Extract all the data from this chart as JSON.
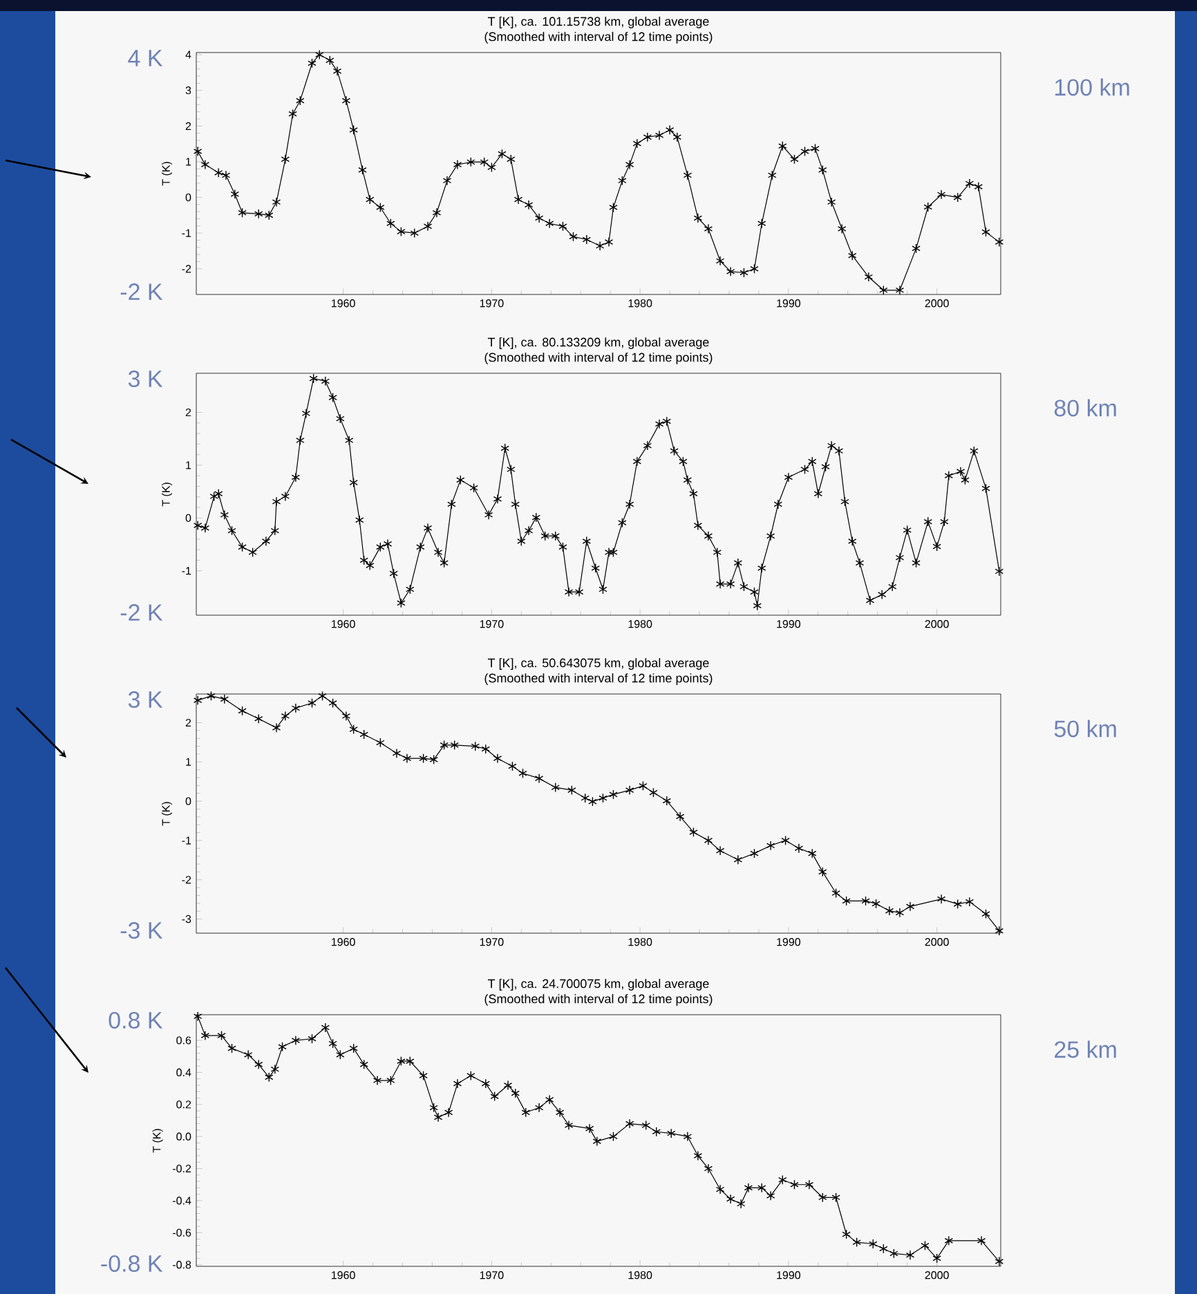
{
  "chart_data": [
    {
      "type": "line",
      "title": "T [K], ca. 101.15738 km, global average",
      "subtitle": "(Smoothed with interval of 12 time points)",
      "ylabel": "T (K)",
      "color": "#000000",
      "marker": "cross",
      "xlim": [
        1950.1,
        2004.3
      ],
      "xticks": [
        1960,
        1970,
        1980,
        1990,
        2000
      ],
      "ylim": [
        -2.72,
        4.06
      ],
      "yticks": [
        -2,
        -1,
        0,
        1,
        2,
        3,
        4
      ],
      "annotations": [
        "4 K",
        "-2 K",
        "100 km"
      ],
      "x": [
        1950.2,
        1950.7,
        1951.6,
        1952.1,
        1952.7,
        1953.2,
        1954.3,
        1955.0,
        1955.5,
        1956.1,
        1956.6,
        1957.1,
        1957.9,
        1958.4,
        1959.1,
        1959.6,
        1960.2,
        1960.7,
        1961.3,
        1961.8,
        1962.5,
        1963.2,
        1963.9,
        1964.8,
        1965.7,
        1966.3,
        1967.0,
        1967.7,
        1968.6,
        1969.5,
        1970.0,
        1970.7,
        1971.3,
        1971.8,
        1972.5,
        1973.2,
        1973.9,
        1974.8,
        1975.5,
        1976.4,
        1977.3,
        1977.9,
        1978.2,
        1978.8,
        1979.3,
        1979.8,
        1980.5,
        1981.3,
        1982.0,
        1982.5,
        1983.2,
        1983.9,
        1984.6,
        1985.4,
        1986.1,
        1987.0,
        1987.7,
        1988.2,
        1988.9,
        1989.6,
        1990.4,
        1991.1,
        1991.8,
        1992.3,
        1992.9,
        1993.6,
        1994.3,
        1995.4,
        1996.4,
        1997.5,
        1998.6,
        1999.4,
        2000.3,
        2001.4,
        2002.2,
        2002.8,
        2003.3,
        2004.2
      ],
      "values": [
        1.29,
        0.92,
        0.69,
        0.62,
        0.09,
        -0.43,
        -0.46,
        -0.5,
        -0.13,
        1.07,
        2.34,
        2.71,
        3.76,
        4.0,
        3.84,
        3.54,
        2.71,
        1.89,
        0.77,
        -0.06,
        -0.28,
        -0.73,
        -0.96,
        -1.0,
        -0.81,
        -0.43,
        0.47,
        0.92,
        0.99,
        0.99,
        0.84,
        1.22,
        1.07,
        -0.06,
        -0.21,
        -0.58,
        -0.73,
        -0.81,
        -1.1,
        -1.18,
        -1.36,
        -1.25,
        -0.28,
        0.47,
        0.92,
        1.51,
        1.69,
        1.74,
        1.89,
        1.69,
        0.62,
        -0.58,
        -0.88,
        -1.78,
        -2.08,
        -2.11,
        -2.0,
        -0.73,
        0.62,
        1.44,
        1.07,
        1.29,
        1.37,
        0.77,
        -0.13,
        -0.88,
        -1.63,
        -2.23,
        -2.6,
        -2.6,
        -1.43,
        -0.27,
        0.08,
        0.0,
        0.39,
        0.3,
        -0.97,
        -1.25
      ]
    },
    {
      "type": "line",
      "title": "T [K], ca. 80.133209 km, global average",
      "subtitle": "(Smoothed with interval of 12 time points)",
      "ylabel": "T (K)",
      "color": "#000000",
      "marker": "cross",
      "xlim": [
        1950.1,
        2004.3
      ],
      "xticks": [
        1960,
        1970,
        1980,
        1990,
        2000
      ],
      "ylim": [
        -1.84,
        2.74
      ],
      "yticks": [
        -1,
        0,
        1,
        2
      ],
      "annotations": [
        "3 K",
        "-2 K",
        "80 km"
      ],
      "x": [
        1950.2,
        1950.7,
        1951.3,
        1951.6,
        1952.0,
        1952.5,
        1953.2,
        1953.9,
        1954.8,
        1955.4,
        1955.5,
        1956.1,
        1956.8,
        1957.1,
        1957.5,
        1958.0,
        1958.8,
        1959.3,
        1959.8,
        1960.4,
        1960.7,
        1961.1,
        1961.4,
        1961.8,
        1962.5,
        1963.0,
        1963.4,
        1963.9,
        1964.5,
        1965.2,
        1965.7,
        1966.4,
        1966.8,
        1967.3,
        1967.9,
        1968.8,
        1969.8,
        1970.4,
        1970.9,
        1971.3,
        1971.6,
        1972.0,
        1972.5,
        1973.0,
        1973.6,
        1974.3,
        1974.8,
        1975.2,
        1975.9,
        1976.4,
        1977.0,
        1977.5,
        1977.9,
        1978.2,
        1978.8,
        1979.3,
        1979.8,
        1980.5,
        1981.3,
        1981.8,
        1982.3,
        1982.9,
        1983.2,
        1983.6,
        1983.9,
        1984.6,
        1985.2,
        1985.4,
        1986.1,
        1986.6,
        1987.0,
        1987.7,
        1987.9,
        1988.2,
        1988.8,
        1989.3,
        1990.0,
        1991.1,
        1991.6,
        1992.0,
        1992.5,
        1992.9,
        1993.4,
        1993.8,
        1994.3,
        1994.8,
        1995.5,
        1996.3,
        1997.0,
        1997.5,
        1998.0,
        1998.6,
        1999.4,
        2000.0,
        2000.5,
        2000.8,
        2001.6,
        2001.9,
        2002.5,
        2003.3,
        2004.2
      ],
      "values": [
        -0.14,
        -0.19,
        0.41,
        0.46,
        0.06,
        -0.24,
        -0.55,
        -0.65,
        -0.44,
        -0.24,
        0.31,
        0.41,
        0.77,
        1.47,
        1.98,
        2.64,
        2.59,
        2.28,
        1.88,
        1.47,
        0.67,
        -0.04,
        -0.8,
        -0.9,
        -0.55,
        -0.49,
        -1.05,
        -1.61,
        -1.35,
        -0.55,
        -0.19,
        -0.65,
        -0.85,
        0.26,
        0.72,
        0.57,
        0.06,
        0.36,
        1.32,
        0.92,
        0.26,
        -0.44,
        -0.24,
        0.01,
        -0.34,
        -0.34,
        -0.55,
        -1.4,
        -1.4,
        -0.44,
        -0.95,
        -1.35,
        -0.65,
        -0.65,
        -0.09,
        0.26,
        1.07,
        1.37,
        1.78,
        1.83,
        1.27,
        1.07,
        0.72,
        0.46,
        -0.14,
        -0.34,
        -0.65,
        -1.25,
        -1.25,
        -0.85,
        -1.3,
        -1.4,
        -1.66,
        -0.95,
        -0.34,
        0.26,
        0.77,
        0.92,
        1.07,
        0.46,
        0.97,
        1.37,
        1.27,
        0.31,
        -0.44,
        -0.85,
        -1.56,
        -1.45,
        -1.3,
        -0.75,
        -0.23,
        -0.85,
        -0.07,
        -0.54,
        -0.07,
        0.8,
        0.88,
        0.72,
        1.27,
        0.56,
        -1.01
      ]
    },
    {
      "type": "line",
      "title": "T [K], ca. 50.643075 km, global average",
      "subtitle": "(Smoothed with interval of 12 time points)",
      "ylabel": "T (K)",
      "color": "#000000",
      "marker": "cross",
      "xlim": [
        1950.1,
        2004.3
      ],
      "xticks": [
        1960,
        1970,
        1980,
        1990,
        2000
      ],
      "ylim": [
        -3.36,
        2.73
      ],
      "yticks": [
        -3,
        -2,
        -1,
        0,
        1,
        2
      ],
      "annotations": [
        "3 K",
        "-3 K",
        "50 km"
      ],
      "x": [
        1950.2,
        1951.1,
        1952.0,
        1953.2,
        1954.3,
        1955.5,
        1956.1,
        1956.8,
        1957.9,
        1958.6,
        1959.3,
        1960.2,
        1960.7,
        1961.4,
        1962.5,
        1963.6,
        1964.3,
        1965.4,
        1966.1,
        1966.8,
        1967.5,
        1968.9,
        1969.6,
        1970.4,
        1971.4,
        1972.1,
        1973.2,
        1974.3,
        1975.4,
        1976.3,
        1976.8,
        1977.5,
        1978.2,
        1979.3,
        1980.2,
        1980.9,
        1981.8,
        1982.7,
        1983.6,
        1984.6,
        1985.4,
        1986.6,
        1987.7,
        1988.8,
        1989.8,
        1990.7,
        1991.6,
        1992.3,
        1993.2,
        1993.9,
        1995.2,
        1995.9,
        1996.8,
        1997.5,
        1998.2,
        2000.3,
        2001.4,
        2002.2,
        2003.3,
        2004.2
      ],
      "values": [
        2.57,
        2.68,
        2.6,
        2.3,
        2.1,
        1.87,
        2.17,
        2.37,
        2.5,
        2.68,
        2.5,
        2.17,
        1.83,
        1.7,
        1.49,
        1.22,
        1.09,
        1.09,
        1.06,
        1.43,
        1.43,
        1.4,
        1.33,
        1.09,
        0.89,
        0.71,
        0.58,
        0.35,
        0.28,
        0.08,
        -0.01,
        0.08,
        0.17,
        0.28,
        0.39,
        0.22,
        0.01,
        -0.39,
        -0.79,
        -1.0,
        -1.26,
        -1.49,
        -1.33,
        -1.13,
        -1.0,
        -1.2,
        -1.33,
        -1.8,
        -2.34,
        -2.54,
        -2.54,
        -2.61,
        -2.79,
        -2.84,
        -2.68,
        -2.49,
        -2.62,
        -2.56,
        -2.87,
        -3.3
      ]
    },
    {
      "type": "line",
      "title": "T [K], ca. 24.700075 km, global average",
      "subtitle": "(Smoothed with interval of 12 time points)",
      "ylabel": "T (K)",
      "color": "#000000",
      "marker": "cross",
      "xlim": [
        1950.1,
        2004.3
      ],
      "xticks": [
        1960,
        1970,
        1980,
        1990,
        2000
      ],
      "ylim": [
        -0.81,
        0.76
      ],
      "yticks": [
        -0.8,
        -0.6,
        -0.4,
        -0.2,
        {
          "value": 0,
          "label": "0.0"
        },
        0.2,
        0.4,
        0.6
      ],
      "annotations": [
        "0.8 K",
        "-0.8 K",
        "25 km"
      ],
      "x": [
        1950.2,
        1950.7,
        1951.8,
        1952.5,
        1953.6,
        1954.3,
        1955.0,
        1955.4,
        1955.9,
        1956.8,
        1957.9,
        1958.8,
        1959.3,
        1959.8,
        1960.7,
        1961.4,
        1962.3,
        1963.2,
        1963.9,
        1964.5,
        1965.4,
        1966.1,
        1966.4,
        1967.1,
        1967.7,
        1968.6,
        1969.6,
        1970.2,
        1971.1,
        1971.6,
        1972.3,
        1973.2,
        1973.9,
        1974.6,
        1975.2,
        1976.6,
        1977.1,
        1978.2,
        1979.3,
        1980.4,
        1981.1,
        1982.1,
        1983.2,
        1983.9,
        1984.6,
        1985.4,
        1986.1,
        1986.8,
        1987.3,
        1988.2,
        1988.8,
        1989.6,
        1990.4,
        1991.4,
        1992.3,
        1993.2,
        1993.9,
        1994.6,
        1995.7,
        1996.4,
        1997.1,
        1998.2,
        1999.2,
        2000.0,
        2000.8,
        2003.0,
        2004.2
      ],
      "values": [
        0.75,
        0.63,
        0.63,
        0.55,
        0.51,
        0.45,
        0.37,
        0.42,
        0.56,
        0.6,
        0.61,
        0.68,
        0.58,
        0.51,
        0.55,
        0.45,
        0.35,
        0.35,
        0.47,
        0.47,
        0.38,
        0.18,
        0.12,
        0.15,
        0.33,
        0.38,
        0.33,
        0.25,
        0.32,
        0.27,
        0.15,
        0.18,
        0.23,
        0.15,
        0.07,
        0.05,
        -0.03,
        0.0,
        0.08,
        0.07,
        0.03,
        0.02,
        0.0,
        -0.12,
        -0.2,
        -0.33,
        -0.39,
        -0.42,
        -0.32,
        -0.32,
        -0.37,
        -0.27,
        -0.3,
        -0.3,
        -0.38,
        -0.38,
        -0.61,
        -0.66,
        -0.67,
        -0.7,
        -0.73,
        -0.74,
        -0.68,
        -0.76,
        -0.65,
        -0.65,
        -0.78
      ]
    }
  ]
}
